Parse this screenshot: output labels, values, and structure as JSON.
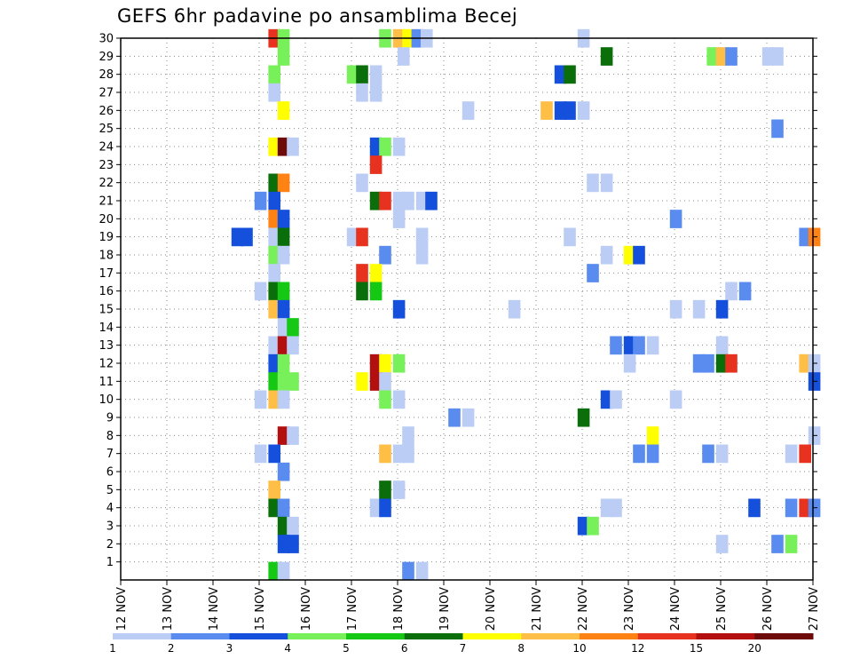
{
  "chart_data": {
    "type": "heatmap",
    "title": "GEFS 6hr padavine po ansamblima Becej",
    "x_labels": [
      "12 NOV",
      "13 NOV",
      "14 NOV",
      "15 NOV",
      "16 NOV",
      "17 NOV",
      "18 NOV",
      "19 NOV",
      "20 NOV",
      "21 NOV",
      "22 NOV",
      "23 NOV",
      "24 NOV",
      "25 NOV",
      "26 NOV",
      "27 NOV"
    ],
    "y_labels": [
      "1",
      "2",
      "3",
      "4",
      "5",
      "6",
      "7",
      "8",
      "9",
      "10",
      "11",
      "12",
      "13",
      "14",
      "15",
      "16",
      "17",
      "18",
      "19",
      "20",
      "21",
      "22",
      "23",
      "24",
      "25",
      "26",
      "27",
      "28",
      "29",
      "30"
    ],
    "x_range_days": [
      12,
      27
    ],
    "y_range": [
      0,
      30
    ],
    "grid": true,
    "colorbar": {
      "labels": [
        "1",
        "2",
        "3",
        "4",
        "5",
        "6",
        "7",
        "8",
        "10",
        "12",
        "15",
        "20"
      ],
      "colors": [
        "#bccdf5",
        "#5a8cf0",
        "#1450dc",
        "#78f05a",
        "#14c814",
        "#0a6e0a",
        "#ffff00",
        "#ffbe46",
        "#ff8214",
        "#e6321e",
        "#b40f0f",
        "#6e0a0a"
      ]
    },
    "cells": [
      {
        "m": 30,
        "d": 15.2,
        "c": 9
      },
      {
        "m": 30,
        "d": 15.4,
        "c": 3
      },
      {
        "m": 30,
        "d": 17.6,
        "c": 3
      },
      {
        "m": 30,
        "d": 17.9,
        "c": 7
      },
      {
        "m": 30,
        "d": 18.1,
        "c": 6
      },
      {
        "m": 30,
        "d": 18.3,
        "c": 1
      },
      {
        "m": 30,
        "d": 18.5,
        "c": 0
      },
      {
        "m": 30,
        "d": 21.9,
        "c": 0
      },
      {
        "m": 29,
        "d": 15.4,
        "c": 3
      },
      {
        "m": 29,
        "d": 18.0,
        "c": 0
      },
      {
        "m": 29,
        "d": 22.4,
        "c": 5
      },
      {
        "m": 29,
        "d": 24.7,
        "c": 3
      },
      {
        "m": 29,
        "d": 24.9,
        "c": 7
      },
      {
        "m": 29,
        "d": 25.1,
        "c": 1
      },
      {
        "m": 29,
        "d": 25.9,
        "c": 0
      },
      {
        "m": 29,
        "d": 26.1,
        "c": 0
      },
      {
        "m": 28,
        "d": 15.2,
        "c": 3
      },
      {
        "m": 28,
        "d": 16.9,
        "c": 3
      },
      {
        "m": 28,
        "d": 17.1,
        "c": 5
      },
      {
        "m": 28,
        "d": 17.4,
        "c": 0
      },
      {
        "m": 28,
        "d": 21.4,
        "c": 2
      },
      {
        "m": 28,
        "d": 21.6,
        "c": 5
      },
      {
        "m": 27,
        "d": 15.2,
        "c": 0
      },
      {
        "m": 27,
        "d": 17.1,
        "c": 0
      },
      {
        "m": 27,
        "d": 17.4,
        "c": 0
      },
      {
        "m": 26,
        "d": 15.4,
        "c": 6
      },
      {
        "m": 26,
        "d": 19.4,
        "c": 0
      },
      {
        "m": 26,
        "d": 21.1,
        "c": 7
      },
      {
        "m": 26,
        "d": 21.4,
        "c": 2
      },
      {
        "m": 26,
        "d": 21.6,
        "c": 2
      },
      {
        "m": 26,
        "d": 21.9,
        "c": 0
      },
      {
        "m": 25,
        "d": 26.1,
        "c": 1
      },
      {
        "m": 24,
        "d": 15.2,
        "c": 6
      },
      {
        "m": 24,
        "d": 15.4,
        "c": 11
      },
      {
        "m": 24,
        "d": 15.6,
        "c": 0
      },
      {
        "m": 24,
        "d": 17.4,
        "c": 2
      },
      {
        "m": 24,
        "d": 17.6,
        "c": 3
      },
      {
        "m": 24,
        "d": 17.9,
        "c": 0
      },
      {
        "m": 23,
        "d": 17.4,
        "c": 9
      },
      {
        "m": 22,
        "d": 15.2,
        "c": 5
      },
      {
        "m": 22,
        "d": 15.4,
        "c": 8
      },
      {
        "m": 22,
        "d": 17.1,
        "c": 0
      },
      {
        "m": 22,
        "d": 22.1,
        "c": 0
      },
      {
        "m": 22,
        "d": 22.4,
        "c": 0
      },
      {
        "m": 21,
        "d": 14.9,
        "c": 1
      },
      {
        "m": 21,
        "d": 15.2,
        "c": 2
      },
      {
        "m": 21,
        "d": 17.4,
        "c": 5
      },
      {
        "m": 21,
        "d": 17.6,
        "c": 9
      },
      {
        "m": 21,
        "d": 17.9,
        "c": 0
      },
      {
        "m": 21,
        "d": 18.1,
        "c": 0
      },
      {
        "m": 21,
        "d": 18.4,
        "c": 0
      },
      {
        "m": 21,
        "d": 18.6,
        "c": 2
      },
      {
        "m": 20,
        "d": 15.2,
        "c": 8
      },
      {
        "m": 20,
        "d": 15.4,
        "c": 2
      },
      {
        "m": 20,
        "d": 17.9,
        "c": 0
      },
      {
        "m": 20,
        "d": 23.9,
        "c": 1
      },
      {
        "m": 19,
        "d": 14.4,
        "c": 2
      },
      {
        "m": 19,
        "d": 14.6,
        "c": 2
      },
      {
        "m": 19,
        "d": 15.2,
        "c": 0
      },
      {
        "m": 19,
        "d": 15.4,
        "c": 5
      },
      {
        "m": 19,
        "d": 16.9,
        "c": 0
      },
      {
        "m": 19,
        "d": 17.1,
        "c": 9
      },
      {
        "m": 19,
        "d": 18.4,
        "c": 0
      },
      {
        "m": 19,
        "d": 21.6,
        "c": 0
      },
      {
        "m": 19,
        "d": 26.7,
        "c": 1
      },
      {
        "m": 19,
        "d": 26.9,
        "c": 8
      },
      {
        "m": 18,
        "d": 15.2,
        "c": 3
      },
      {
        "m": 18,
        "d": 15.4,
        "c": 0
      },
      {
        "m": 18,
        "d": 17.6,
        "c": 1
      },
      {
        "m": 18,
        "d": 18.4,
        "c": 0
      },
      {
        "m": 18,
        "d": 22.4,
        "c": 0
      },
      {
        "m": 18,
        "d": 22.9,
        "c": 6
      },
      {
        "m": 18,
        "d": 23.1,
        "c": 2
      },
      {
        "m": 17,
        "d": 15.2,
        "c": 0
      },
      {
        "m": 17,
        "d": 17.1,
        "c": 9
      },
      {
        "m": 17,
        "d": 17.4,
        "c": 6
      },
      {
        "m": 17,
        "d": 22.1,
        "c": 1
      },
      {
        "m": 16,
        "d": 14.9,
        "c": 0
      },
      {
        "m": 16,
        "d": 15.2,
        "c": 5
      },
      {
        "m": 16,
        "d": 15.4,
        "c": 4
      },
      {
        "m": 16,
        "d": 17.1,
        "c": 5
      },
      {
        "m": 16,
        "d": 17.4,
        "c": 4
      },
      {
        "m": 16,
        "d": 25.1,
        "c": 0
      },
      {
        "m": 16,
        "d": 25.4,
        "c": 1
      },
      {
        "m": 15,
        "d": 15.2,
        "c": 7
      },
      {
        "m": 15,
        "d": 15.4,
        "c": 2
      },
      {
        "m": 15,
        "d": 17.9,
        "c": 2
      },
      {
        "m": 15,
        "d": 20.4,
        "c": 0
      },
      {
        "m": 15,
        "d": 23.9,
        "c": 0
      },
      {
        "m": 15,
        "d": 24.4,
        "c": 0
      },
      {
        "m": 15,
        "d": 24.9,
        "c": 2
      },
      {
        "m": 14,
        "d": 15.4,
        "c": 0
      },
      {
        "m": 14,
        "d": 15.6,
        "c": 4
      },
      {
        "m": 13,
        "d": 15.2,
        "c": 0
      },
      {
        "m": 13,
        "d": 15.4,
        "c": 10
      },
      {
        "m": 13,
        "d": 15.6,
        "c": 0
      },
      {
        "m": 13,
        "d": 22.6,
        "c": 1
      },
      {
        "m": 13,
        "d": 22.9,
        "c": 2
      },
      {
        "m": 13,
        "d": 23.1,
        "c": 1
      },
      {
        "m": 13,
        "d": 23.4,
        "c": 0
      },
      {
        "m": 13,
        "d": 24.9,
        "c": 0
      },
      {
        "m": 12,
        "d": 15.2,
        "c": 2
      },
      {
        "m": 12,
        "d": 15.4,
        "c": 3
      },
      {
        "m": 12,
        "d": 17.4,
        "c": 10
      },
      {
        "m": 12,
        "d": 17.6,
        "c": 6
      },
      {
        "m": 12,
        "d": 17.9,
        "c": 3
      },
      {
        "m": 12,
        "d": 22.9,
        "c": 0
      },
      {
        "m": 12,
        "d": 24.4,
        "c": 1
      },
      {
        "m": 12,
        "d": 24.6,
        "c": 1
      },
      {
        "m": 12,
        "d": 24.9,
        "c": 5
      },
      {
        "m": 12,
        "d": 25.1,
        "c": 9
      },
      {
        "m": 12,
        "d": 26.7,
        "c": 7
      },
      {
        "m": 12,
        "d": 26.9,
        "c": 0
      },
      {
        "m": 11,
        "d": 15.2,
        "c": 4
      },
      {
        "m": 11,
        "d": 15.4,
        "c": 3
      },
      {
        "m": 11,
        "d": 15.6,
        "c": 3
      },
      {
        "m": 11,
        "d": 17.1,
        "c": 6
      },
      {
        "m": 11,
        "d": 17.4,
        "c": 10
      },
      {
        "m": 11,
        "d": 17.6,
        "c": 0
      },
      {
        "m": 11,
        "d": 26.9,
        "c": 2
      },
      {
        "m": 10,
        "d": 14.9,
        "c": 0
      },
      {
        "m": 10,
        "d": 15.2,
        "c": 7
      },
      {
        "m": 10,
        "d": 15.4,
        "c": 0
      },
      {
        "m": 10,
        "d": 17.6,
        "c": 3
      },
      {
        "m": 10,
        "d": 17.9,
        "c": 0
      },
      {
        "m": 10,
        "d": 22.4,
        "c": 2
      },
      {
        "m": 10,
        "d": 22.6,
        "c": 0
      },
      {
        "m": 10,
        "d": 23.9,
        "c": 0
      },
      {
        "m": 9,
        "d": 19.1,
        "c": 1
      },
      {
        "m": 9,
        "d": 19.4,
        "c": 0
      },
      {
        "m": 9,
        "d": 21.9,
        "c": 5
      },
      {
        "m": 8,
        "d": 15.4,
        "c": 10
      },
      {
        "m": 8,
        "d": 15.6,
        "c": 0
      },
      {
        "m": 8,
        "d": 18.1,
        "c": 0
      },
      {
        "m": 8,
        "d": 23.4,
        "c": 6
      },
      {
        "m": 8,
        "d": 26.9,
        "c": 0
      },
      {
        "m": 7,
        "d": 14.9,
        "c": 0
      },
      {
        "m": 7,
        "d": 15.2,
        "c": 2
      },
      {
        "m": 7,
        "d": 17.6,
        "c": 7
      },
      {
        "m": 7,
        "d": 17.9,
        "c": 0
      },
      {
        "m": 7,
        "d": 18.1,
        "c": 0
      },
      {
        "m": 7,
        "d": 23.1,
        "c": 1
      },
      {
        "m": 7,
        "d": 23.4,
        "c": 1
      },
      {
        "m": 7,
        "d": 24.6,
        "c": 1
      },
      {
        "m": 7,
        "d": 24.9,
        "c": 0
      },
      {
        "m": 7,
        "d": 26.4,
        "c": 0
      },
      {
        "m": 7,
        "d": 26.7,
        "c": 9
      },
      {
        "m": 6,
        "d": 15.4,
        "c": 1
      },
      {
        "m": 5,
        "d": 15.2,
        "c": 7
      },
      {
        "m": 5,
        "d": 17.6,
        "c": 5
      },
      {
        "m": 5,
        "d": 17.9,
        "c": 0
      },
      {
        "m": 4,
        "d": 15.2,
        "c": 5
      },
      {
        "m": 4,
        "d": 15.4,
        "c": 1
      },
      {
        "m": 4,
        "d": 17.4,
        "c": 0
      },
      {
        "m": 4,
        "d": 17.6,
        "c": 2
      },
      {
        "m": 4,
        "d": 22.4,
        "c": 0
      },
      {
        "m": 4,
        "d": 22.6,
        "c": 0
      },
      {
        "m": 4,
        "d": 25.6,
        "c": 2
      },
      {
        "m": 4,
        "d": 26.4,
        "c": 1
      },
      {
        "m": 4,
        "d": 26.7,
        "c": 9
      },
      {
        "m": 4,
        "d": 26.9,
        "c": 1
      },
      {
        "m": 3,
        "d": 15.4,
        "c": 5
      },
      {
        "m": 3,
        "d": 15.6,
        "c": 0
      },
      {
        "m": 3,
        "d": 21.9,
        "c": 2
      },
      {
        "m": 3,
        "d": 22.1,
        "c": 3
      },
      {
        "m": 2,
        "d": 15.4,
        "c": 2
      },
      {
        "m": 2,
        "d": 15.6,
        "c": 2
      },
      {
        "m": 2,
        "d": 24.9,
        "c": 0
      },
      {
        "m": 2,
        "d": 26.1,
        "c": 1
      },
      {
        "m": 2,
        "d": 26.4,
        "c": 3
      },
      {
        "m": 0.5,
        "d": 15.2,
        "c": 4
      },
      {
        "m": 0.5,
        "d": 15.4,
        "c": 0
      },
      {
        "m": 0.5,
        "d": 18.1,
        "c": 1
      },
      {
        "m": 0.5,
        "d": 18.4,
        "c": 0
      }
    ]
  }
}
